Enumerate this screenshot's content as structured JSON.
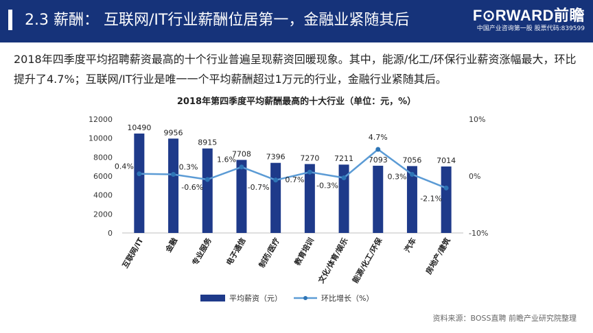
{
  "header": {
    "section_number": "2.3",
    "title": "2.3 薪酬： 互联网/IT行业薪酬位居第一，金融业紧随其后"
  },
  "logo": {
    "wordmark": "F⊙RWARD前瞻",
    "tagline": "中国产业咨询第一股 股票代码:839599"
  },
  "intro": {
    "text": "2018年四季度平均招聘薪资最高的十个行业普遍呈现薪资回暖现象。其中，能源/化工/环保行业薪资涨幅最大，环比提升了4.7%；互联网/IT行业是唯一一个平均薪酬超过1万元的行业，金融行业紧随其后。"
  },
  "colors": {
    "header_bg": "#16337a",
    "bar": "#1e3a8a",
    "line": "#5b9bd5",
    "marker": "#2e75b6"
  },
  "chart_data": {
    "type": "bar",
    "title": "2018年第四季度平均薪酬最高的十大行业（单位：元，%）",
    "categories": [
      "互联网/IT",
      "金融",
      "专业服务",
      "电子通信",
      "制药/医疗",
      "教育培训",
      "文化/体育/娱乐",
      "能源/化工/环保",
      "汽车",
      "房地产/建筑"
    ],
    "series": [
      {
        "name": "平均薪资（元）",
        "type": "bar",
        "axis": "left",
        "values": [
          10490,
          9956,
          8915,
          7708,
          7396,
          7270,
          7211,
          7093,
          7056,
          7014
        ],
        "labels": [
          "10490",
          "9956",
          "8915",
          "7708",
          "7396",
          "7270",
          "7211",
          "7093",
          "7056",
          "7014"
        ]
      },
      {
        "name": "环比增长（%）",
        "type": "line",
        "axis": "right",
        "values": [
          0.4,
          0.3,
          -0.6,
          1.6,
          -0.7,
          0.7,
          -0.3,
          4.7,
          0.3,
          -2.1
        ],
        "labels": [
          "0.4%",
          "0.3%",
          "-0.6%",
          "1.6%",
          "-0.7%",
          "0.7%",
          "-0.3%",
          "4.7%",
          "0.3%",
          "-2.1%"
        ]
      }
    ],
    "y_left": {
      "min": 0,
      "max": 12000,
      "ticks": [
        0,
        2000,
        4000,
        6000,
        8000,
        10000,
        12000
      ],
      "tick_labels": [
        "0",
        "2000",
        "4000",
        "6000",
        "8000",
        "10000",
        "12000"
      ]
    },
    "y_right": {
      "min": -10,
      "max": 10,
      "ticks": [
        -10,
        0,
        10
      ],
      "tick_labels": [
        "-10%",
        "0%",
        "10%"
      ]
    },
    "grid": false,
    "legend": "bottom-center"
  },
  "source": {
    "text": "资料来源：BOSS直聘 前瞻产业研究院整理"
  }
}
